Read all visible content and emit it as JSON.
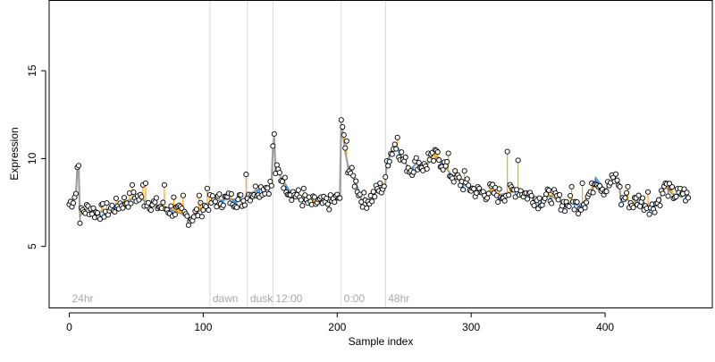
{
  "chart_data": {
    "type": "scatter",
    "xlabel": "Sample index",
    "ylabel": "Expression",
    "xlim": [
      -15,
      480
    ],
    "ylim": [
      1.5,
      19
    ],
    "xticks": [
      0,
      100,
      200,
      300,
      400
    ],
    "yticks": [
      5,
      10,
      15
    ],
    "baseline_color": "#9e9e9e",
    "up_color": "#ffa500",
    "down_color": "#1e90ff",
    "point_fill": "#ffffff",
    "phases": [
      {
        "label": "24hr",
        "x": 0
      },
      {
        "label": "dawn",
        "x": 105
      },
      {
        "label": "dusk",
        "x": 133
      },
      {
        "label": "12:00",
        "x": 152
      },
      {
        "label": "0:00",
        "x": 203
      },
      {
        "label": "48hr",
        "x": 236
      }
    ],
    "anchors": [
      [
        0,
        7.4
      ],
      [
        3,
        7.7
      ],
      [
        5,
        8.0
      ],
      [
        6,
        9.4
      ],
      [
        7,
        9.5
      ],
      [
        8,
        6.7
      ],
      [
        10,
        7.0
      ],
      [
        15,
        7.2
      ],
      [
        20,
        6.9
      ],
      [
        30,
        7.1
      ],
      [
        40,
        7.5
      ],
      [
        50,
        7.8
      ],
      [
        60,
        7.5
      ],
      [
        70,
        7.2
      ],
      [
        80,
        7.0
      ],
      [
        90,
        6.6
      ],
      [
        95,
        6.9
      ],
      [
        100,
        7.2
      ],
      [
        105,
        7.5
      ],
      [
        110,
        7.6
      ],
      [
        120,
        7.7
      ],
      [
        130,
        7.6
      ],
      [
        132,
        7.9
      ],
      [
        135,
        8.0
      ],
      [
        140,
        8.2
      ],
      [
        148,
        8.4
      ],
      [
        151,
        8.5
      ],
      [
        152,
        10.5
      ],
      [
        153,
        11.2
      ],
      [
        154,
        9.3
      ],
      [
        156,
        9.2
      ],
      [
        160,
        8.7
      ],
      [
        165,
        8.1
      ],
      [
        170,
        7.9
      ],
      [
        175,
        7.6
      ],
      [
        180,
        7.4
      ],
      [
        185,
        7.5
      ],
      [
        190,
        7.4
      ],
      [
        195,
        7.5
      ],
      [
        200,
        7.7
      ],
      [
        202,
        7.8
      ],
      [
        203,
        12.0
      ],
      [
        204,
        11.6
      ],
      [
        206,
        10.4
      ],
      [
        208,
        9.6
      ],
      [
        210,
        9.2
      ],
      [
        215,
        8.4
      ],
      [
        218,
        7.7
      ],
      [
        222,
        7.6
      ],
      [
        226,
        7.8
      ],
      [
        230,
        8.2
      ],
      [
        234,
        8.4
      ],
      [
        236,
        8.6
      ],
      [
        237,
        9.8
      ],
      [
        240,
        10.3
      ],
      [
        243,
        10.8
      ],
      [
        246,
        10.5
      ],
      [
        250,
        9.8
      ],
      [
        255,
        9.4
      ],
      [
        260,
        9.8
      ],
      [
        265,
        9.5
      ],
      [
        270,
        9.9
      ],
      [
        275,
        10.1
      ],
      [
        280,
        9.6
      ],
      [
        285,
        9.1
      ],
      [
        290,
        8.8
      ],
      [
        295,
        8.5
      ],
      [
        300,
        8.3
      ],
      [
        305,
        8.1
      ],
      [
        310,
        8.0
      ],
      [
        315,
        8.2
      ],
      [
        320,
        7.9
      ],
      [
        325,
        8.0
      ],
      [
        330,
        8.1
      ],
      [
        335,
        8.3
      ],
      [
        340,
        8.0
      ],
      [
        345,
        7.9
      ],
      [
        350,
        7.6
      ],
      [
        355,
        7.8
      ],
      [
        360,
        7.9
      ],
      [
        365,
        7.6
      ],
      [
        370,
        7.4
      ],
      [
        375,
        7.5
      ],
      [
        380,
        7.3
      ],
      [
        385,
        7.6
      ],
      [
        390,
        8.2
      ],
      [
        393,
        8.9
      ],
      [
        396,
        8.6
      ],
      [
        400,
        8.2
      ],
      [
        405,
        8.7
      ],
      [
        408,
        8.9
      ],
      [
        410,
        8.7
      ],
      [
        412,
        7.6
      ],
      [
        415,
        7.8
      ],
      [
        420,
        7.4
      ],
      [
        425,
        7.7
      ],
      [
        430,
        7.4
      ],
      [
        435,
        7.2
      ],
      [
        440,
        7.6
      ],
      [
        445,
        8.4
      ],
      [
        450,
        8.0
      ],
      [
        455,
        7.9
      ],
      [
        458,
        8.1
      ],
      [
        462,
        7.7
      ]
    ],
    "spikes": [
      [
        6,
        9.5
      ],
      [
        7,
        9.6
      ],
      [
        47,
        8.5
      ],
      [
        55,
        8.5
      ],
      [
        57,
        8.6
      ],
      [
        71,
        8.5
      ],
      [
        78,
        7.8
      ],
      [
        85,
        7.9
      ],
      [
        97,
        7.9
      ],
      [
        103,
        8.3
      ],
      [
        132,
        9.1
      ],
      [
        153,
        11.4
      ],
      [
        175,
        8.3
      ],
      [
        203,
        12.2
      ],
      [
        204,
        11.8
      ],
      [
        207,
        11.0
      ],
      [
        245,
        11.2
      ],
      [
        268,
        10.3
      ],
      [
        273,
        10.5
      ],
      [
        283,
        10.3
      ],
      [
        295,
        9.3
      ],
      [
        327,
        10.4
      ],
      [
        335,
        9.9
      ],
      [
        375,
        8.4
      ],
      [
        383,
        8.6
      ],
      [
        417,
        8.4
      ],
      [
        432,
        8.1
      ],
      [
        445,
        8.6
      ]
    ],
    "n_points": 463,
    "noise_seed": 7
  }
}
